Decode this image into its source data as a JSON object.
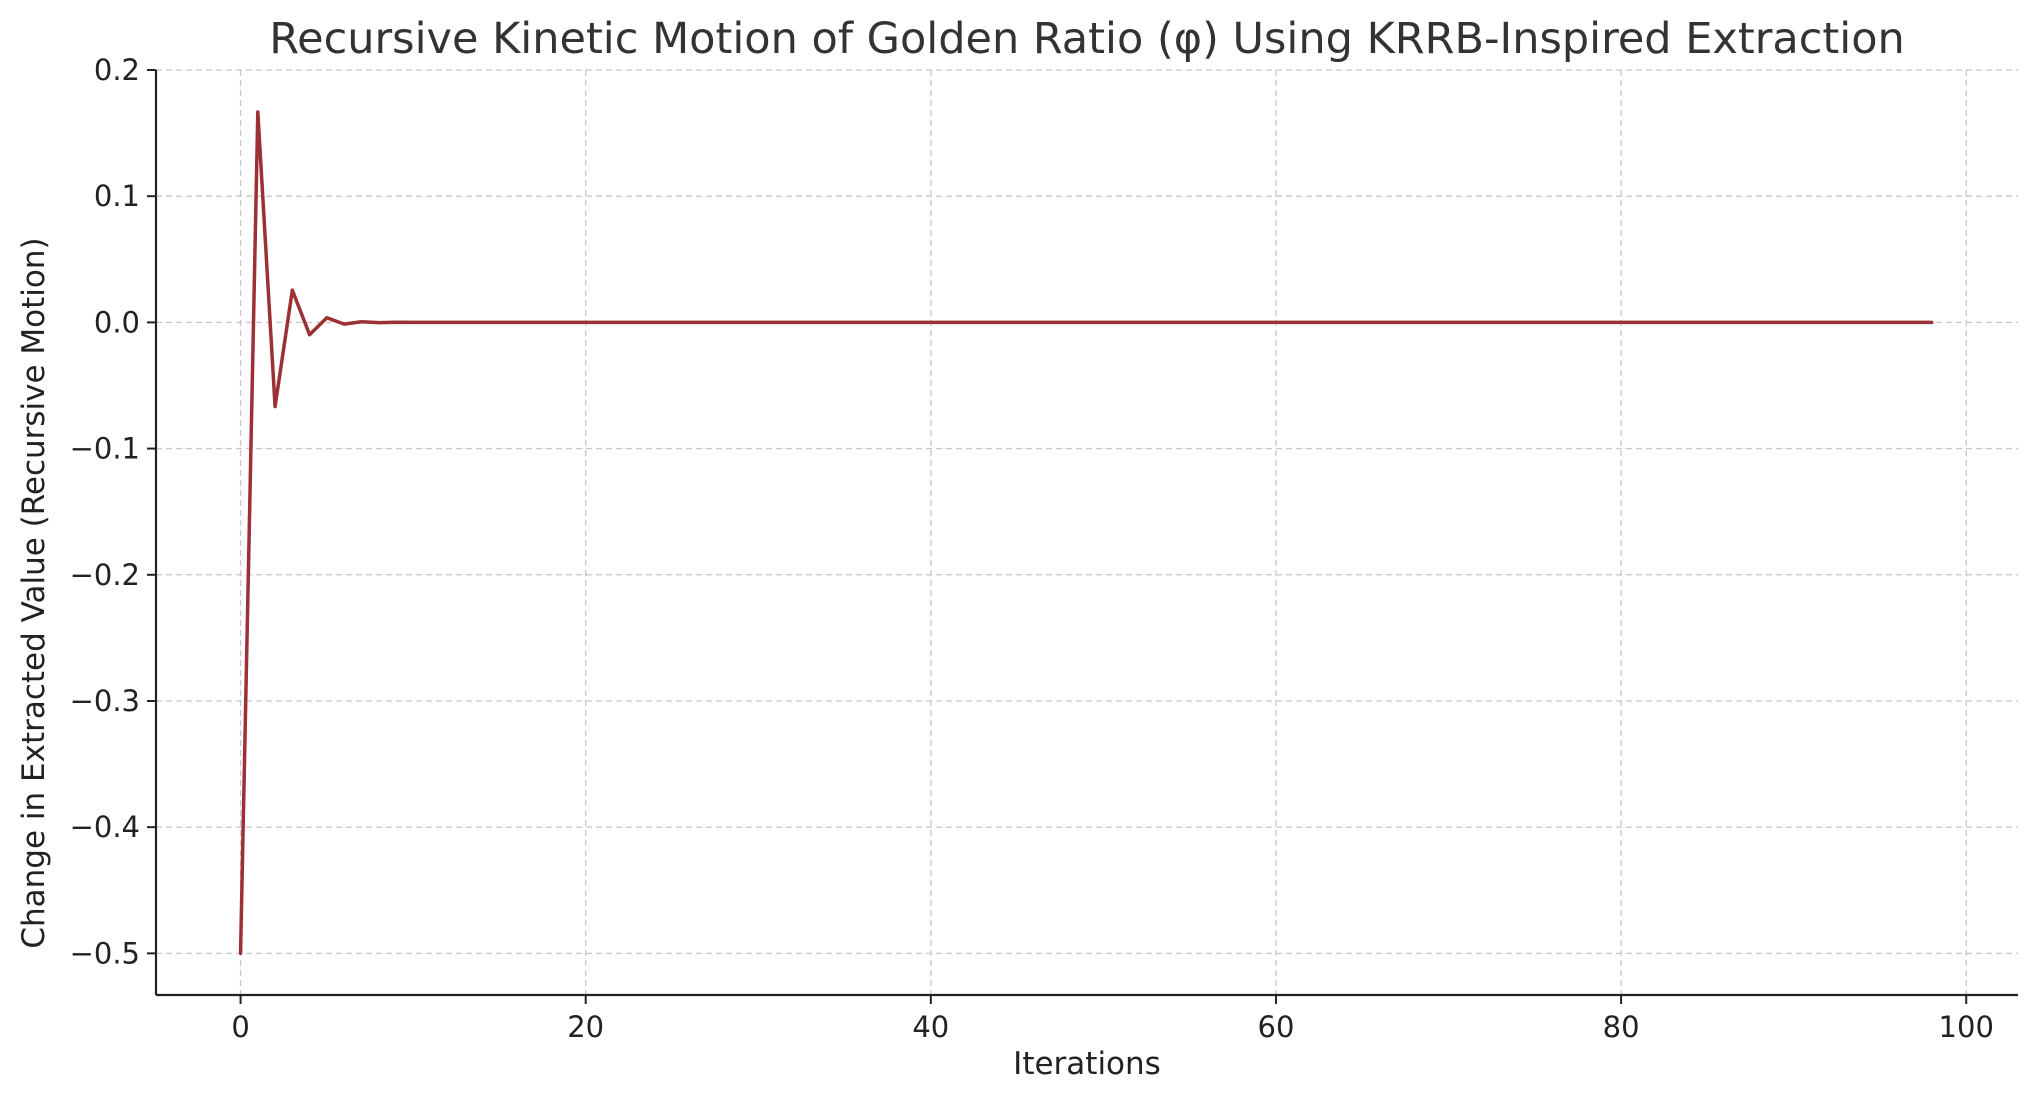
{
  "chart_data": {
    "type": "line",
    "title": "Recursive Kinetic Motion of Golden Ratio (φ) Using KRRB-Inspired Extraction",
    "xlabel": "Iterations",
    "ylabel": "Change in Extracted Value (Recursive Motion)",
    "xlim": [
      -4.9,
      103
    ],
    "ylim": [
      -0.533,
      0.2
    ],
    "x_ticks": [
      0,
      20,
      40,
      60,
      80,
      100
    ],
    "x_tick_labels": [
      "0",
      "20",
      "40",
      "60",
      "80",
      "100"
    ],
    "y_ticks": [
      0.2,
      0.1,
      0.0,
      -0.1,
      -0.2,
      -0.3,
      -0.4,
      -0.5
    ],
    "y_tick_labels": [
      "0.2",
      "0.1",
      "0.0",
      "−0.1",
      "−0.2",
      "−0.3",
      "−0.4",
      "−0.5"
    ],
    "grid": true,
    "series": [
      {
        "color": "#9b3035",
        "x_start": 0,
        "x_end": 98,
        "values": [
          -0.5,
          0.1667,
          -0.0667,
          0.0256,
          -0.0098,
          0.0037,
          -0.0014,
          0.0005,
          -0.0002,
          0.0001,
          0.0
        ]
      }
    ]
  }
}
